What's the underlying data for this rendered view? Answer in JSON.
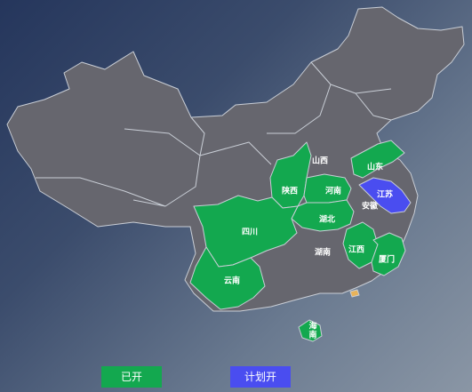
{
  "colors": {
    "base": "#66666e",
    "opened": "#13a84f",
    "planned": "#4a4df0",
    "highlight": "#e8b35a"
  },
  "provinces": {
    "shanxi": "山西",
    "shandong": "山东",
    "shaanxi": "陕西",
    "henan": "河南",
    "jiangsu": "江苏",
    "anhui": "安徽",
    "hubei": "湖北",
    "sichuan": "四川",
    "hunan": "湖南",
    "jiangxi": "江西",
    "xiamen": "厦门",
    "yunnan": "云南",
    "hainan": "海南"
  },
  "legend": {
    "opened": "已开",
    "planned": "计划开"
  }
}
